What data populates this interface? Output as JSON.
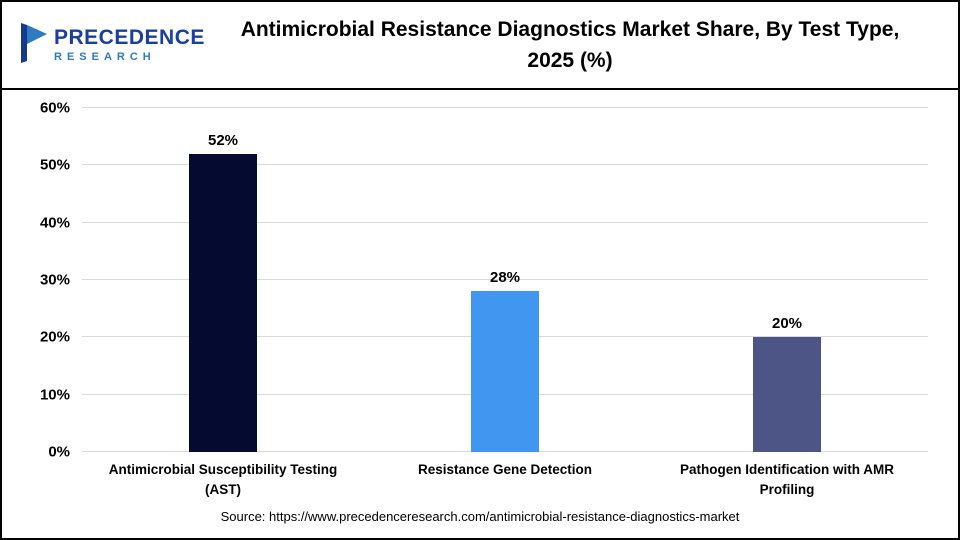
{
  "header": {
    "logo": {
      "line1": "PRECEDENCE",
      "line2": "RESEARCH"
    },
    "title": "Antimicrobial Resistance Diagnostics Market Share, By Test Type, 2025 (%)"
  },
  "chart_data": {
    "type": "bar",
    "title": "Antimicrobial Resistance Diagnostics Market Share, By Test Type, 2025 (%)",
    "categories": [
      "Antimicrobial Susceptibility Testing (AST)",
      "Resistance Gene Detection",
      "Pathogen Identification with AMR Profiling"
    ],
    "values": [
      52,
      28,
      20
    ],
    "value_labels": [
      "52%",
      "28%",
      "20%"
    ],
    "bar_colors": [
      "#050a30",
      "#4196f0",
      "#4d5587"
    ],
    "xlabel": "",
    "ylabel": "",
    "ylim": [
      0,
      60
    ],
    "yticks": [
      0,
      10,
      20,
      30,
      40,
      50,
      60
    ],
    "ytick_suffix": "%",
    "grid": true,
    "legend": false
  },
  "footer": {
    "source": "Source: https://www.precedenceresearch.com/antimicrobial-resistance-diagnostics-market"
  },
  "colors": {
    "grid": "#d9d9d9",
    "axis_text": "#000000",
    "logo_primary": "#1b3fa0",
    "logo_secondary": "#2e7bc4"
  }
}
